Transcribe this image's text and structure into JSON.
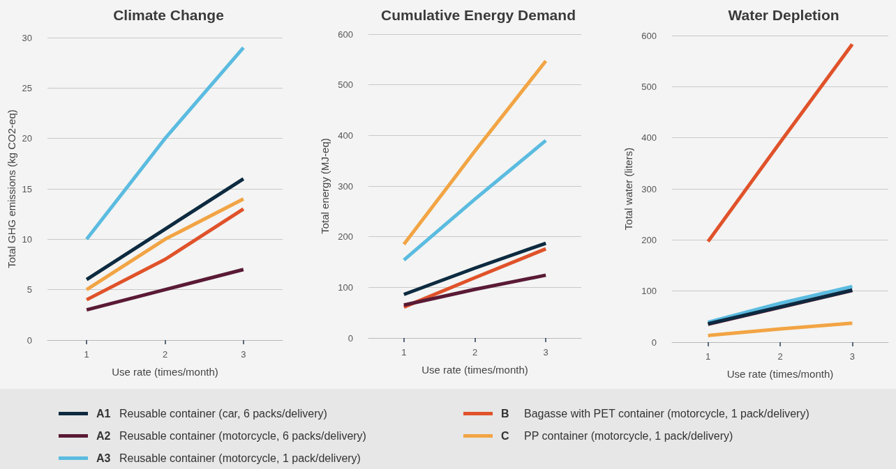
{
  "chart_data": [
    {
      "type": "line",
      "title": "Climate Change",
      "xlabel": "Use rate (times/month)",
      "ylabel": "Total GHG emissions (kg CO2-eq)",
      "categories": [
        "1",
        "2",
        "3"
      ],
      "ylim": [
        0,
        30
      ],
      "yticks": [
        0,
        5,
        10,
        15,
        20,
        25,
        30
      ],
      "grid": "y",
      "legend": "bottom",
      "marker": "none",
      "line_style": "solid",
      "series": [
        {
          "name": "A1 Reusable container (car, 6 packs/delivery)",
          "color": "#0d2a40",
          "values": [
            6,
            11,
            16
          ]
        },
        {
          "name": "B Bagasse with PET container (motorcycle, 1 pack/delivery)",
          "color": "#e0522a",
          "values": [
            4,
            8,
            13
          ]
        },
        {
          "name": "A2 Reusable container (motorcycle, 6 packs/delivery)",
          "color": "#5a1a35",
          "values": [
            3,
            5,
            7
          ]
        },
        {
          "name": "C PP container (motorcycle, 1 pack/delivery)",
          "color": "#f2a444",
          "values": [
            5,
            10,
            14
          ]
        },
        {
          "name": "A3 Reusable container (motorcycle, 1 pack/delivery)",
          "color": "#5bbbe0",
          "values": [
            10,
            20,
            29
          ]
        }
      ]
    },
    {
      "type": "line",
      "title": "Cumulative Energy Demand",
      "xlabel": "Use rate (times/month)",
      "ylabel": "Total energy (MJ-eq)",
      "categories": [
        "1",
        "2",
        "3"
      ],
      "ylim": [
        0,
        600
      ],
      "yticks": [
        0,
        100,
        200,
        300,
        400,
        500,
        600
      ],
      "grid": "y",
      "marker": "none",
      "line_style": "solid",
      "series": [
        {
          "color": "#0d2a40",
          "values": [
            86,
            138,
            187
          ]
        },
        {
          "color": "#e0522a",
          "values": [
            61,
            119,
            176
          ]
        },
        {
          "color": "#5a1a35",
          "values": [
            65,
            96,
            124
          ]
        },
        {
          "color": "#f2a444",
          "values": [
            185,
            369,
            547
          ]
        },
        {
          "color": "#5bbbe0",
          "values": [
            154,
            274,
            390
          ]
        }
      ]
    },
    {
      "type": "line",
      "title": "Water Depletion",
      "xlabel": "Use rate (times/month)",
      "ylabel": "Total water (liters)",
      "categories": [
        "1",
        "2",
        "3"
      ],
      "ylim": [
        0,
        600
      ],
      "yticks": [
        0,
        100,
        200,
        300,
        400,
        500,
        600
      ],
      "grid": "y",
      "marker": "none",
      "line_style": "solid",
      "series": [
        {
          "color": "#e0522a",
          "values": [
            197,
            391,
            583
          ]
        },
        {
          "color": "#5a1a35",
          "values": [
            35,
            68,
            101
          ]
        },
        {
          "color": "#f2a444",
          "values": [
            13,
            26,
            37
          ]
        },
        {
          "color": "#5bbbe0",
          "values": [
            39,
            76,
            109
          ]
        },
        {
          "color": "#0d2a40",
          "values": [
            36,
            69,
            102
          ]
        }
      ]
    }
  ]
}
